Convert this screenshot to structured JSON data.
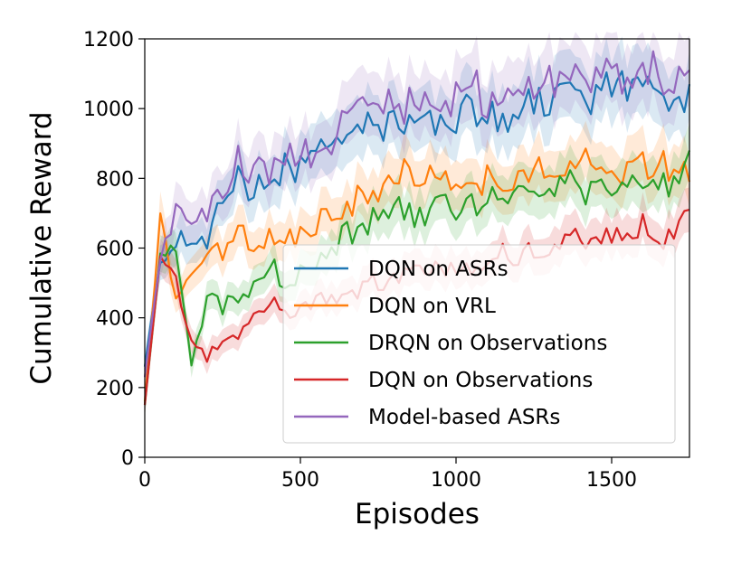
{
  "chart_data": {
    "type": "line",
    "title": "",
    "xlabel": "Episodes",
    "ylabel": "Cumulative Reward",
    "xlim": [
      0,
      1750
    ],
    "ylim": [
      0,
      1200
    ],
    "xticks": [
      0,
      500,
      1000,
      1500
    ],
    "yticks": [
      0,
      200,
      400,
      600,
      800,
      1000,
      1200
    ],
    "grid": false,
    "legend_position": "lower-right",
    "series": [
      {
        "name": "DQN on ASRs",
        "color": "#1f77b4",
        "x": [
          0,
          50,
          100,
          150,
          200,
          250,
          300,
          350,
          400,
          450,
          500,
          550,
          600,
          650,
          700,
          750,
          800,
          850,
          900,
          950,
          1000,
          1050,
          1100,
          1150,
          1200,
          1250,
          1300,
          1350,
          1400,
          1450,
          1500,
          1550,
          1600,
          1650,
          1700,
          1750
        ],
        "values": [
          260,
          580,
          640,
          630,
          620,
          770,
          790,
          780,
          800,
          830,
          840,
          850,
          900,
          950,
          930,
          940,
          940,
          960,
          950,
          940,
          960,
          1000,
          980,
          990,
          980,
          1010,
          1000,
          1020,
          1030,
          1010,
          1060,
          1040,
          1030,
          1040,
          1010,
          1070
        ]
      },
      {
        "name": "DQN on VRL",
        "color": "#ff7f0e",
        "x": [
          0,
          50,
          100,
          150,
          200,
          250,
          300,
          350,
          400,
          450,
          500,
          550,
          600,
          650,
          700,
          750,
          800,
          850,
          900,
          950,
          1000,
          1050,
          1100,
          1150,
          1200,
          1250,
          1300,
          1350,
          1400,
          1450,
          1500,
          1550,
          1600,
          1650,
          1700,
          1750
        ],
        "values": [
          160,
          680,
          480,
          530,
          560,
          590,
          640,
          620,
          620,
          630,
          640,
          680,
          700,
          720,
          760,
          770,
          800,
          820,
          790,
          800,
          820,
          760,
          800,
          780,
          820,
          820,
          830,
          800,
          850,
          830,
          840,
          800,
          850,
          830,
          830,
          790
        ]
      },
      {
        "name": "DRQN on Observations",
        "color": "#2ca02c",
        "x": [
          0,
          50,
          100,
          150,
          200,
          250,
          300,
          350,
          400,
          450,
          500,
          550,
          600,
          650,
          700,
          750,
          800,
          850,
          900,
          950,
          1000,
          1050,
          1100,
          1150,
          1200,
          1250,
          1300,
          1350,
          1400,
          1450,
          1500,
          1550,
          1600,
          1650,
          1700,
          1750
        ],
        "values": [
          150,
          580,
          600,
          270,
          460,
          430,
          470,
          480,
          560,
          490,
          520,
          560,
          600,
          640,
          640,
          700,
          720,
          700,
          680,
          720,
          700,
          730,
          740,
          720,
          740,
          760,
          760,
          800,
          740,
          780,
          790,
          760,
          800,
          790,
          790,
          880
        ]
      },
      {
        "name": "DQN on Observations",
        "color": "#d62728",
        "x": [
          0,
          50,
          100,
          150,
          200,
          250,
          300,
          350,
          400,
          450,
          500,
          550,
          600,
          650,
          700,
          750,
          800,
          850,
          900,
          950,
          1000,
          1050,
          1100,
          1150,
          1200,
          1250,
          1300,
          1350,
          1400,
          1450,
          1500,
          1550,
          1600,
          1650,
          1700,
          1750
        ],
        "values": [
          150,
          580,
          530,
          320,
          290,
          320,
          360,
          410,
          450,
          420,
          420,
          450,
          440,
          470,
          490,
          500,
          520,
          510,
          540,
          530,
          560,
          550,
          560,
          580,
          580,
          590,
          600,
          620,
          620,
          600,
          640,
          620,
          660,
          640,
          620,
          710
        ]
      },
      {
        "name": "Model-based ASRs",
        "color": "#9467bd",
        "x": [
          0,
          50,
          100,
          150,
          200,
          250,
          300,
          350,
          400,
          450,
          500,
          550,
          600,
          650,
          700,
          750,
          800,
          850,
          900,
          950,
          1000,
          1050,
          1100,
          1150,
          1200,
          1250,
          1300,
          1350,
          1400,
          1450,
          1500,
          1550,
          1600,
          1650,
          1700,
          1750
        ],
        "values": [
          230,
          580,
          690,
          660,
          710,
          770,
          860,
          810,
          830,
          880,
          880,
          840,
          900,
          1000,
          1020,
          1010,
          1020,
          1000,
          1040,
          1030,
          1040,
          1070,
          1030,
          1050,
          1060,
          1060,
          1070,
          1080,
          1100,
          1080,
          1120,
          1080,
          1100,
          1100,
          1080,
          1110
        ]
      }
    ]
  }
}
